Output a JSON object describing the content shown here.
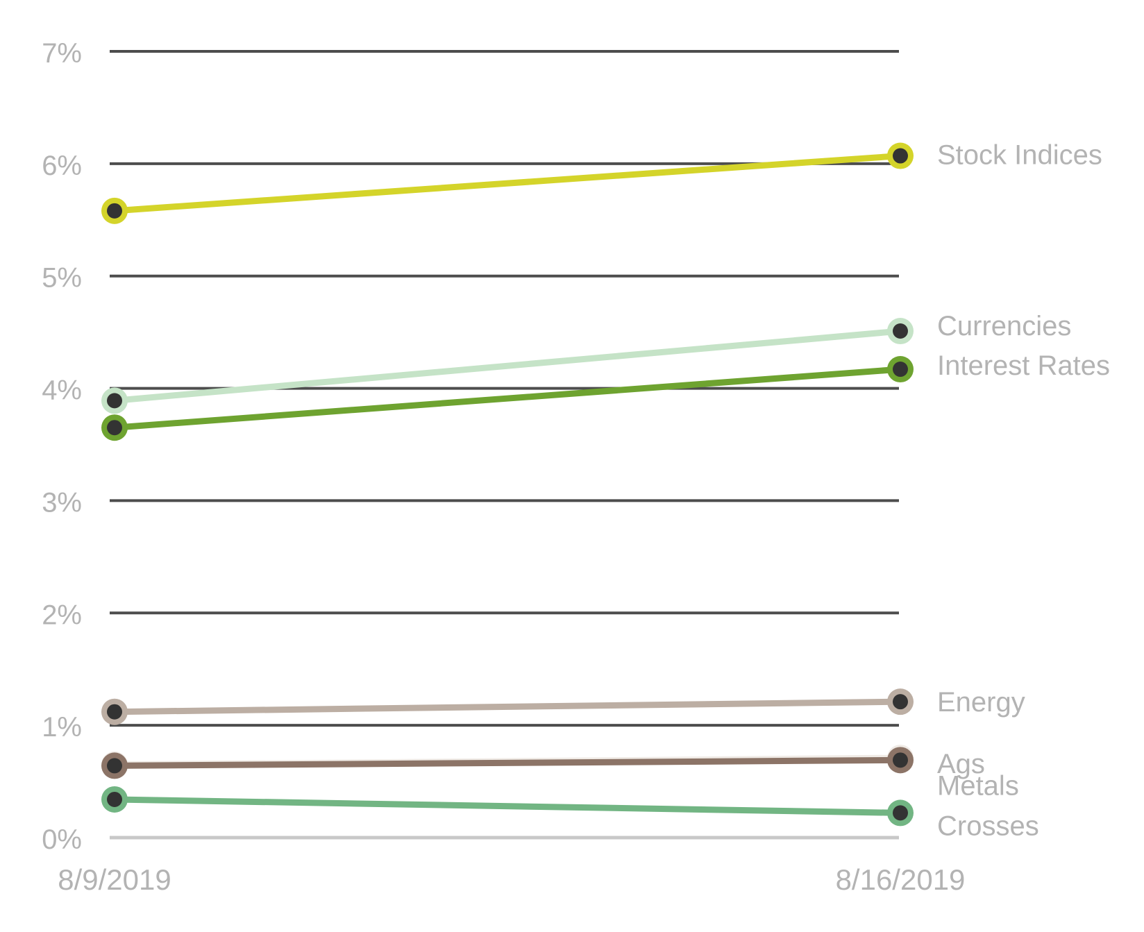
{
  "chart_data": {
    "type": "line",
    "title": "",
    "xlabel": "",
    "ylabel": "",
    "x": [
      "8/9/2019",
      "8/16/2019"
    ],
    "ylim": [
      0,
      7
    ],
    "yticks": [
      0,
      1,
      2,
      3,
      4,
      5,
      6,
      7
    ],
    "ytick_labels": [
      "0%",
      "1%",
      "2%",
      "3%",
      "4%",
      "5%",
      "6%",
      "7%"
    ],
    "grid": true,
    "legend": "direct labels at right end of lines",
    "colors": {
      "gridline": "#4d4d4d",
      "baseline": "#c8c8c8",
      "marker_center": "#333333",
      "text": "#b3b3b3"
    },
    "series": [
      {
        "name": "Stock Indices",
        "values": [
          5.58,
          6.07
        ],
        "color": "#d4d42a"
      },
      {
        "name": "Currencies",
        "values": [
          3.89,
          4.51
        ],
        "color": "#c5e3c7"
      },
      {
        "name": "Interest Rates",
        "values": [
          3.65,
          4.17
        ],
        "color": "#6ea330"
      },
      {
        "name": "Energy",
        "values": [
          1.12,
          1.21
        ],
        "color": "#bcaea3"
      },
      {
        "name": "Ags",
        "values": [
          0.65,
          0.71
        ],
        "color": "#f0ebe6"
      },
      {
        "name": "Metals",
        "values": [
          0.64,
          0.69
        ],
        "color": "#8c7467"
      },
      {
        "name": "Crosses",
        "values": [
          0.34,
          0.22
        ],
        "color": "#72b583"
      }
    ]
  }
}
